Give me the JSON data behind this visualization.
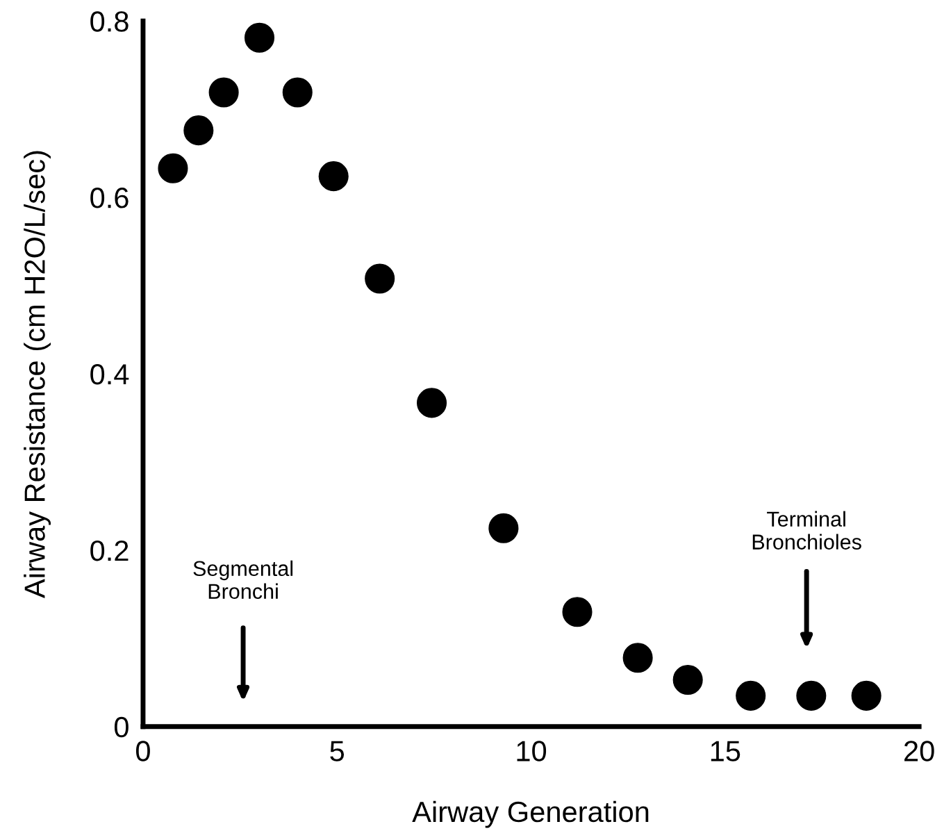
{
  "chart_data": {
    "type": "scatter",
    "xlabel": "Airway Generation",
    "ylabel": "Airway Resistance (cm H2O/L/sec)",
    "x": [
      0.77,
      1.43,
      2.08,
      3.0,
      3.98,
      4.91,
      6.1,
      7.44,
      9.29,
      11.19,
      12.75,
      14.04,
      15.66,
      17.22,
      18.64
    ],
    "values": [
      0.633,
      0.676,
      0.719,
      0.781,
      0.719,
      0.624,
      0.508,
      0.367,
      0.225,
      0.13,
      0.078,
      0.053,
      0.035,
      0.035,
      0.035
    ],
    "color": "#000000",
    "marker": "circle",
    "xlim": [
      0,
      20
    ],
    "xticks": [
      0,
      5,
      10,
      15,
      20
    ],
    "ylim": [
      0,
      0.8
    ],
    "yticks": [
      0,
      0.2,
      0.4,
      0.6,
      0.8
    ],
    "grid": false,
    "legend": false,
    "annotations": [
      "Segmental\nBronchi",
      "Terminal\nBronchioles"
    ]
  }
}
